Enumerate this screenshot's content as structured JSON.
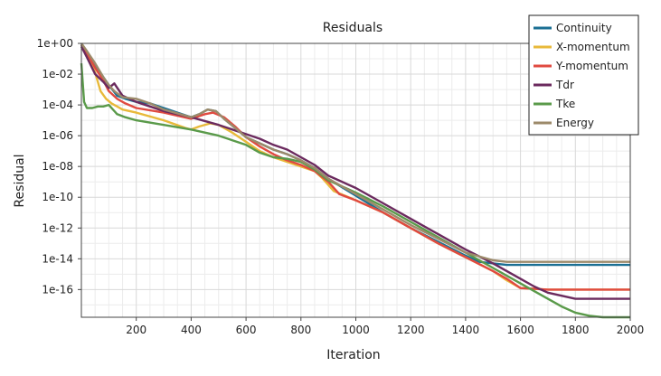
{
  "chart_data": {
    "type": "line",
    "title": "Residuals",
    "xlabel": "Iteration",
    "ylabel": "Residual",
    "xlim": [
      0,
      2000
    ],
    "ylim_log10": [
      -17.8,
      0
    ],
    "yscale": "log",
    "x_ticks": [
      200,
      400,
      600,
      800,
      1000,
      1200,
      1400,
      1600,
      1800,
      2000
    ],
    "x_tick_labels": [
      "200",
      "400",
      "600",
      "800",
      "1000",
      "1200",
      "1400",
      "1600",
      "1800",
      "2000"
    ],
    "y_ticks_log10": [
      0,
      -2,
      -4,
      -6,
      -8,
      -10,
      -12,
      -14,
      -16
    ],
    "y_tick_labels": [
      "1e+00",
      "1e-02",
      "1e-04",
      "1e-06",
      "1e-08",
      "1e-10",
      "1e-12",
      "1e-14",
      "1e-16"
    ],
    "grid": true,
    "legend_position": "top-right",
    "series": [
      {
        "name": "Continuity",
        "color": "#1a6f93",
        "points": [
          [
            0,
            -0.1
          ],
          [
            20,
            -0.7
          ],
          [
            50,
            -1.5
          ],
          [
            80,
            -2.2
          ],
          [
            100,
            -2.7
          ],
          [
            130,
            -3.4
          ],
          [
            160,
            -3.6
          ],
          [
            200,
            -3.8
          ],
          [
            250,
            -3.9
          ],
          [
            300,
            -4.2
          ],
          [
            350,
            -4.5
          ],
          [
            400,
            -4.8
          ],
          [
            430,
            -4.6
          ],
          [
            460,
            -4.3
          ],
          [
            490,
            -4.4
          ],
          [
            520,
            -4.9
          ],
          [
            560,
            -5.5
          ],
          [
            600,
            -6.1
          ],
          [
            650,
            -6.5
          ],
          [
            700,
            -6.9
          ],
          [
            750,
            -7.2
          ],
          [
            800,
            -7.6
          ],
          [
            850,
            -8.1
          ],
          [
            900,
            -8.8
          ],
          [
            1000,
            -9.9
          ],
          [
            1100,
            -11.0
          ],
          [
            1200,
            -12.0
          ],
          [
            1300,
            -12.9
          ],
          [
            1400,
            -13.8
          ],
          [
            1450,
            -14.2
          ],
          [
            1500,
            -14.3
          ],
          [
            1550,
            -14.4
          ],
          [
            1600,
            -14.4
          ],
          [
            1700,
            -14.4
          ],
          [
            1800,
            -14.4
          ],
          [
            1900,
            -14.4
          ],
          [
            2000,
            -14.4
          ]
        ]
      },
      {
        "name": "X-momentum",
        "color": "#e8b93a",
        "points": [
          [
            0,
            -0.2
          ],
          [
            20,
            -0.8
          ],
          [
            50,
            -1.9
          ],
          [
            70,
            -3.1
          ],
          [
            90,
            -3.6
          ],
          [
            110,
            -3.9
          ],
          [
            150,
            -4.3
          ],
          [
            200,
            -4.5
          ],
          [
            300,
            -5.0
          ],
          [
            380,
            -5.5
          ],
          [
            400,
            -5.6
          ],
          [
            430,
            -5.4
          ],
          [
            470,
            -5.2
          ],
          [
            500,
            -5.3
          ],
          [
            550,
            -5.8
          ],
          [
            600,
            -6.4
          ],
          [
            650,
            -7.0
          ],
          [
            700,
            -7.4
          ],
          [
            750,
            -7.7
          ],
          [
            800,
            -8.0
          ],
          [
            850,
            -8.3
          ],
          [
            880,
            -8.8
          ],
          [
            920,
            -9.6
          ],
          [
            1000,
            -10.2
          ],
          [
            1100,
            -11.0
          ],
          [
            1200,
            -12.0
          ],
          [
            1300,
            -13.0
          ],
          [
            1400,
            -13.9
          ],
          [
            1500,
            -14.8
          ],
          [
            1550,
            -15.4
          ],
          [
            1600,
            -15.9
          ],
          [
            1700,
            -16.0
          ],
          [
            1800,
            -16.0
          ],
          [
            1900,
            -16.0
          ],
          [
            2000,
            -16.0
          ]
        ]
      },
      {
        "name": "Y-momentum",
        "color": "#e04a40",
        "points": [
          [
            0,
            -0.1
          ],
          [
            20,
            -0.6
          ],
          [
            50,
            -1.6
          ],
          [
            80,
            -2.4
          ],
          [
            100,
            -3.1
          ],
          [
            130,
            -3.6
          ],
          [
            160,
            -3.9
          ],
          [
            200,
            -4.2
          ],
          [
            300,
            -4.5
          ],
          [
            400,
            -4.9
          ],
          [
            450,
            -4.6
          ],
          [
            480,
            -4.5
          ],
          [
            520,
            -4.8
          ],
          [
            560,
            -5.4
          ],
          [
            600,
            -6.1
          ],
          [
            650,
            -6.7
          ],
          [
            700,
            -7.2
          ],
          [
            750,
            -7.6
          ],
          [
            800,
            -7.9
          ],
          [
            850,
            -8.3
          ],
          [
            900,
            -9.0
          ],
          [
            940,
            -9.8
          ],
          [
            1000,
            -10.2
          ],
          [
            1100,
            -11.0
          ],
          [
            1200,
            -12.0
          ],
          [
            1300,
            -13.0
          ],
          [
            1400,
            -13.9
          ],
          [
            1500,
            -14.8
          ],
          [
            1550,
            -15.3
          ],
          [
            1600,
            -15.9
          ],
          [
            1700,
            -16.0
          ],
          [
            1800,
            -16.0
          ],
          [
            1900,
            -16.0
          ],
          [
            2000,
            -16.0
          ]
        ]
      },
      {
        "name": "Tdr",
        "color": "#6b2a5e",
        "points": [
          [
            0,
            -0.2
          ],
          [
            20,
            -0.9
          ],
          [
            50,
            -2.0
          ],
          [
            80,
            -2.5
          ],
          [
            100,
            -2.9
          ],
          [
            120,
            -2.6
          ],
          [
            150,
            -3.4
          ],
          [
            200,
            -3.8
          ],
          [
            250,
            -4.1
          ],
          [
            300,
            -4.4
          ],
          [
            400,
            -4.8
          ],
          [
            500,
            -5.3
          ],
          [
            600,
            -5.9
          ],
          [
            650,
            -6.2
          ],
          [
            700,
            -6.6
          ],
          [
            750,
            -6.9
          ],
          [
            800,
            -7.4
          ],
          [
            850,
            -7.9
          ],
          [
            900,
            -8.6
          ],
          [
            1000,
            -9.4
          ],
          [
            1100,
            -10.4
          ],
          [
            1200,
            -11.4
          ],
          [
            1300,
            -12.4
          ],
          [
            1400,
            -13.4
          ],
          [
            1500,
            -14.3
          ],
          [
            1600,
            -15.3
          ],
          [
            1650,
            -15.8
          ],
          [
            1700,
            -16.2
          ],
          [
            1800,
            -16.6
          ],
          [
            1900,
            -16.6
          ],
          [
            2000,
            -16.6
          ]
        ]
      },
      {
        "name": "Tke",
        "color": "#5a9a4a",
        "points": [
          [
            0,
            -1.3
          ],
          [
            10,
            -3.8
          ],
          [
            20,
            -4.2
          ],
          [
            40,
            -4.2
          ],
          [
            60,
            -4.1
          ],
          [
            80,
            -4.1
          ],
          [
            100,
            -4.0
          ],
          [
            130,
            -4.6
          ],
          [
            160,
            -4.8
          ],
          [
            200,
            -5.0
          ],
          [
            300,
            -5.3
          ],
          [
            400,
            -5.6
          ],
          [
            500,
            -6.0
          ],
          [
            600,
            -6.6
          ],
          [
            650,
            -7.1
          ],
          [
            700,
            -7.4
          ],
          [
            750,
            -7.5
          ],
          [
            800,
            -7.7
          ],
          [
            850,
            -8.2
          ],
          [
            900,
            -8.9
          ],
          [
            1000,
            -9.7
          ],
          [
            1100,
            -10.6
          ],
          [
            1200,
            -11.6
          ],
          [
            1300,
            -12.6
          ],
          [
            1400,
            -13.6
          ],
          [
            1500,
            -14.6
          ],
          [
            1600,
            -15.6
          ],
          [
            1700,
            -16.6
          ],
          [
            1750,
            -17.1
          ],
          [
            1800,
            -17.5
          ],
          [
            1850,
            -17.7
          ],
          [
            1900,
            -17.8
          ],
          [
            2000,
            -17.8
          ]
        ]
      },
      {
        "name": "Energy",
        "color": "#9c8a6a",
        "points": [
          [
            0,
            0.0
          ],
          [
            20,
            -0.5
          ],
          [
            50,
            -1.3
          ],
          [
            80,
            -2.2
          ],
          [
            100,
            -2.7
          ],
          [
            120,
            -3.1
          ],
          [
            150,
            -3.5
          ],
          [
            200,
            -3.6
          ],
          [
            250,
            -3.9
          ],
          [
            300,
            -4.3
          ],
          [
            400,
            -4.8
          ],
          [
            430,
            -4.6
          ],
          [
            460,
            -4.3
          ],
          [
            490,
            -4.4
          ],
          [
            520,
            -4.9
          ],
          [
            560,
            -5.5
          ],
          [
            600,
            -6.1
          ],
          [
            650,
            -6.5
          ],
          [
            700,
            -6.9
          ],
          [
            750,
            -7.2
          ],
          [
            800,
            -7.6
          ],
          [
            850,
            -8.1
          ],
          [
            900,
            -8.8
          ],
          [
            1000,
            -9.8
          ],
          [
            1100,
            -10.8
          ],
          [
            1200,
            -11.8
          ],
          [
            1300,
            -12.7
          ],
          [
            1400,
            -13.6
          ],
          [
            1500,
            -14.1
          ],
          [
            1550,
            -14.2
          ],
          [
            1600,
            -14.2
          ],
          [
            1700,
            -14.2
          ],
          [
            1800,
            -14.2
          ],
          [
            1900,
            -14.2
          ],
          [
            2000,
            -14.2
          ]
        ]
      }
    ]
  }
}
